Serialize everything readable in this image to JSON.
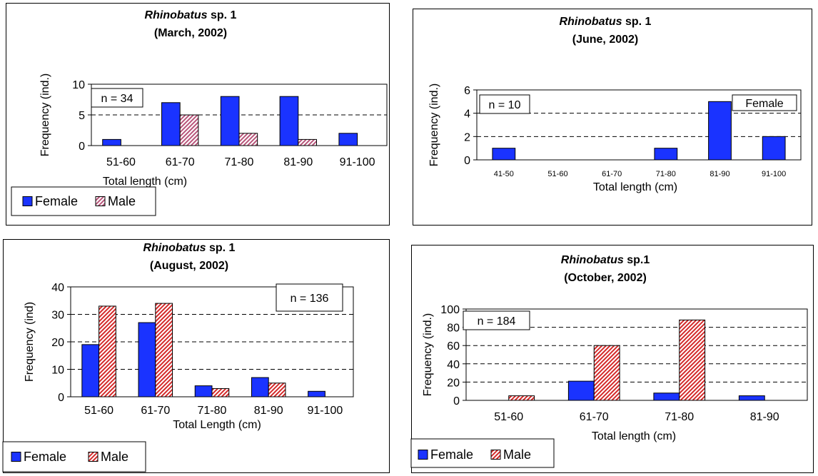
{
  "colors": {
    "female": "#1a33ff",
    "male_red": "#d42a2a",
    "male_pale": "#b8557a"
  },
  "chart_data": [
    {
      "type": "bar",
      "title_italic": "Rhinobatus",
      "title_rest": " sp. 1",
      "subtitle": "(March, 2002)",
      "xlabel": "Total length (cm)",
      "ylabel": "Frequency (ind.)",
      "categories": [
        "51-60",
        "61-70",
        "71-80",
        "81-90",
        "91-100"
      ],
      "yticks": [
        "0",
        "5",
        "10"
      ],
      "ylim": [
        0,
        10
      ],
      "grid": "dashed",
      "n_label": "n = 34",
      "legend": [
        "Female",
        "Male"
      ],
      "legend_position": "bottom-left",
      "series": [
        {
          "name": "Female",
          "values": [
            1,
            7,
            8,
            8,
            2
          ],
          "pattern": "solid"
        },
        {
          "name": "Male",
          "values": [
            0,
            5,
            2,
            1,
            0
          ],
          "pattern": "pale-hatch"
        }
      ]
    },
    {
      "type": "bar",
      "title_italic": "Rhinobatus",
      "title_rest": " sp. 1",
      "subtitle": "(June, 2002)",
      "xlabel": "Total length (cm)",
      "ylabel": "Frequency (ind.)",
      "categories": [
        "41-50",
        "51-60",
        "61-70",
        "71-80",
        "81-90",
        "91-100"
      ],
      "yticks": [
        "0",
        "2",
        "4",
        "6"
      ],
      "ylim": [
        0,
        6
      ],
      "grid": "dashed",
      "n_label": "n = 10",
      "legend": [
        "Female"
      ],
      "legend_position": "top-right",
      "series": [
        {
          "name": "Female",
          "values": [
            1,
            0,
            0,
            1,
            5,
            2
          ],
          "pattern": "solid"
        }
      ]
    },
    {
      "type": "bar",
      "title_italic": "Rhinobatus",
      "title_rest": " sp. 1",
      "subtitle": "(August, 2002)",
      "xlabel": "Total Length (cm)",
      "ylabel": "Frequency (ind)",
      "categories": [
        "51-60",
        "61-70",
        "71-80",
        "81-90",
        "91-100"
      ],
      "yticks": [
        "0",
        "10",
        "20",
        "30",
        "40"
      ],
      "ylim": [
        0,
        40
      ],
      "grid": "dashed",
      "n_label": "n = 136",
      "legend": [
        "Female",
        "Male"
      ],
      "legend_position": "bottom-left",
      "series": [
        {
          "name": "Female",
          "values": [
            19,
            27,
            4,
            7,
            2
          ],
          "pattern": "solid"
        },
        {
          "name": "Male",
          "values": [
            33,
            34,
            3,
            5,
            0
          ],
          "pattern": "red-hatch"
        }
      ]
    },
    {
      "type": "bar",
      "title_italic": "Rhinobatus",
      "title_rest": " sp.1",
      "subtitle": "(October, 2002)",
      "xlabel": "Total length (cm)",
      "ylabel": "Frequency (ind.)",
      "categories": [
        "51-60",
        "61-70",
        "71-80",
        "81-90"
      ],
      "yticks": [
        "0",
        "20",
        "40",
        "60",
        "80",
        "100"
      ],
      "ylim": [
        0,
        100
      ],
      "grid": "dashed",
      "n_label": "n = 184",
      "legend": [
        "Female",
        "Male"
      ],
      "legend_position": "bottom-left",
      "series": [
        {
          "name": "Female",
          "values": [
            0,
            21,
            8,
            5
          ],
          "pattern": "solid"
        },
        {
          "name": "Male",
          "values": [
            5,
            60,
            88,
            0
          ],
          "pattern": "red-hatch"
        }
      ]
    }
  ]
}
